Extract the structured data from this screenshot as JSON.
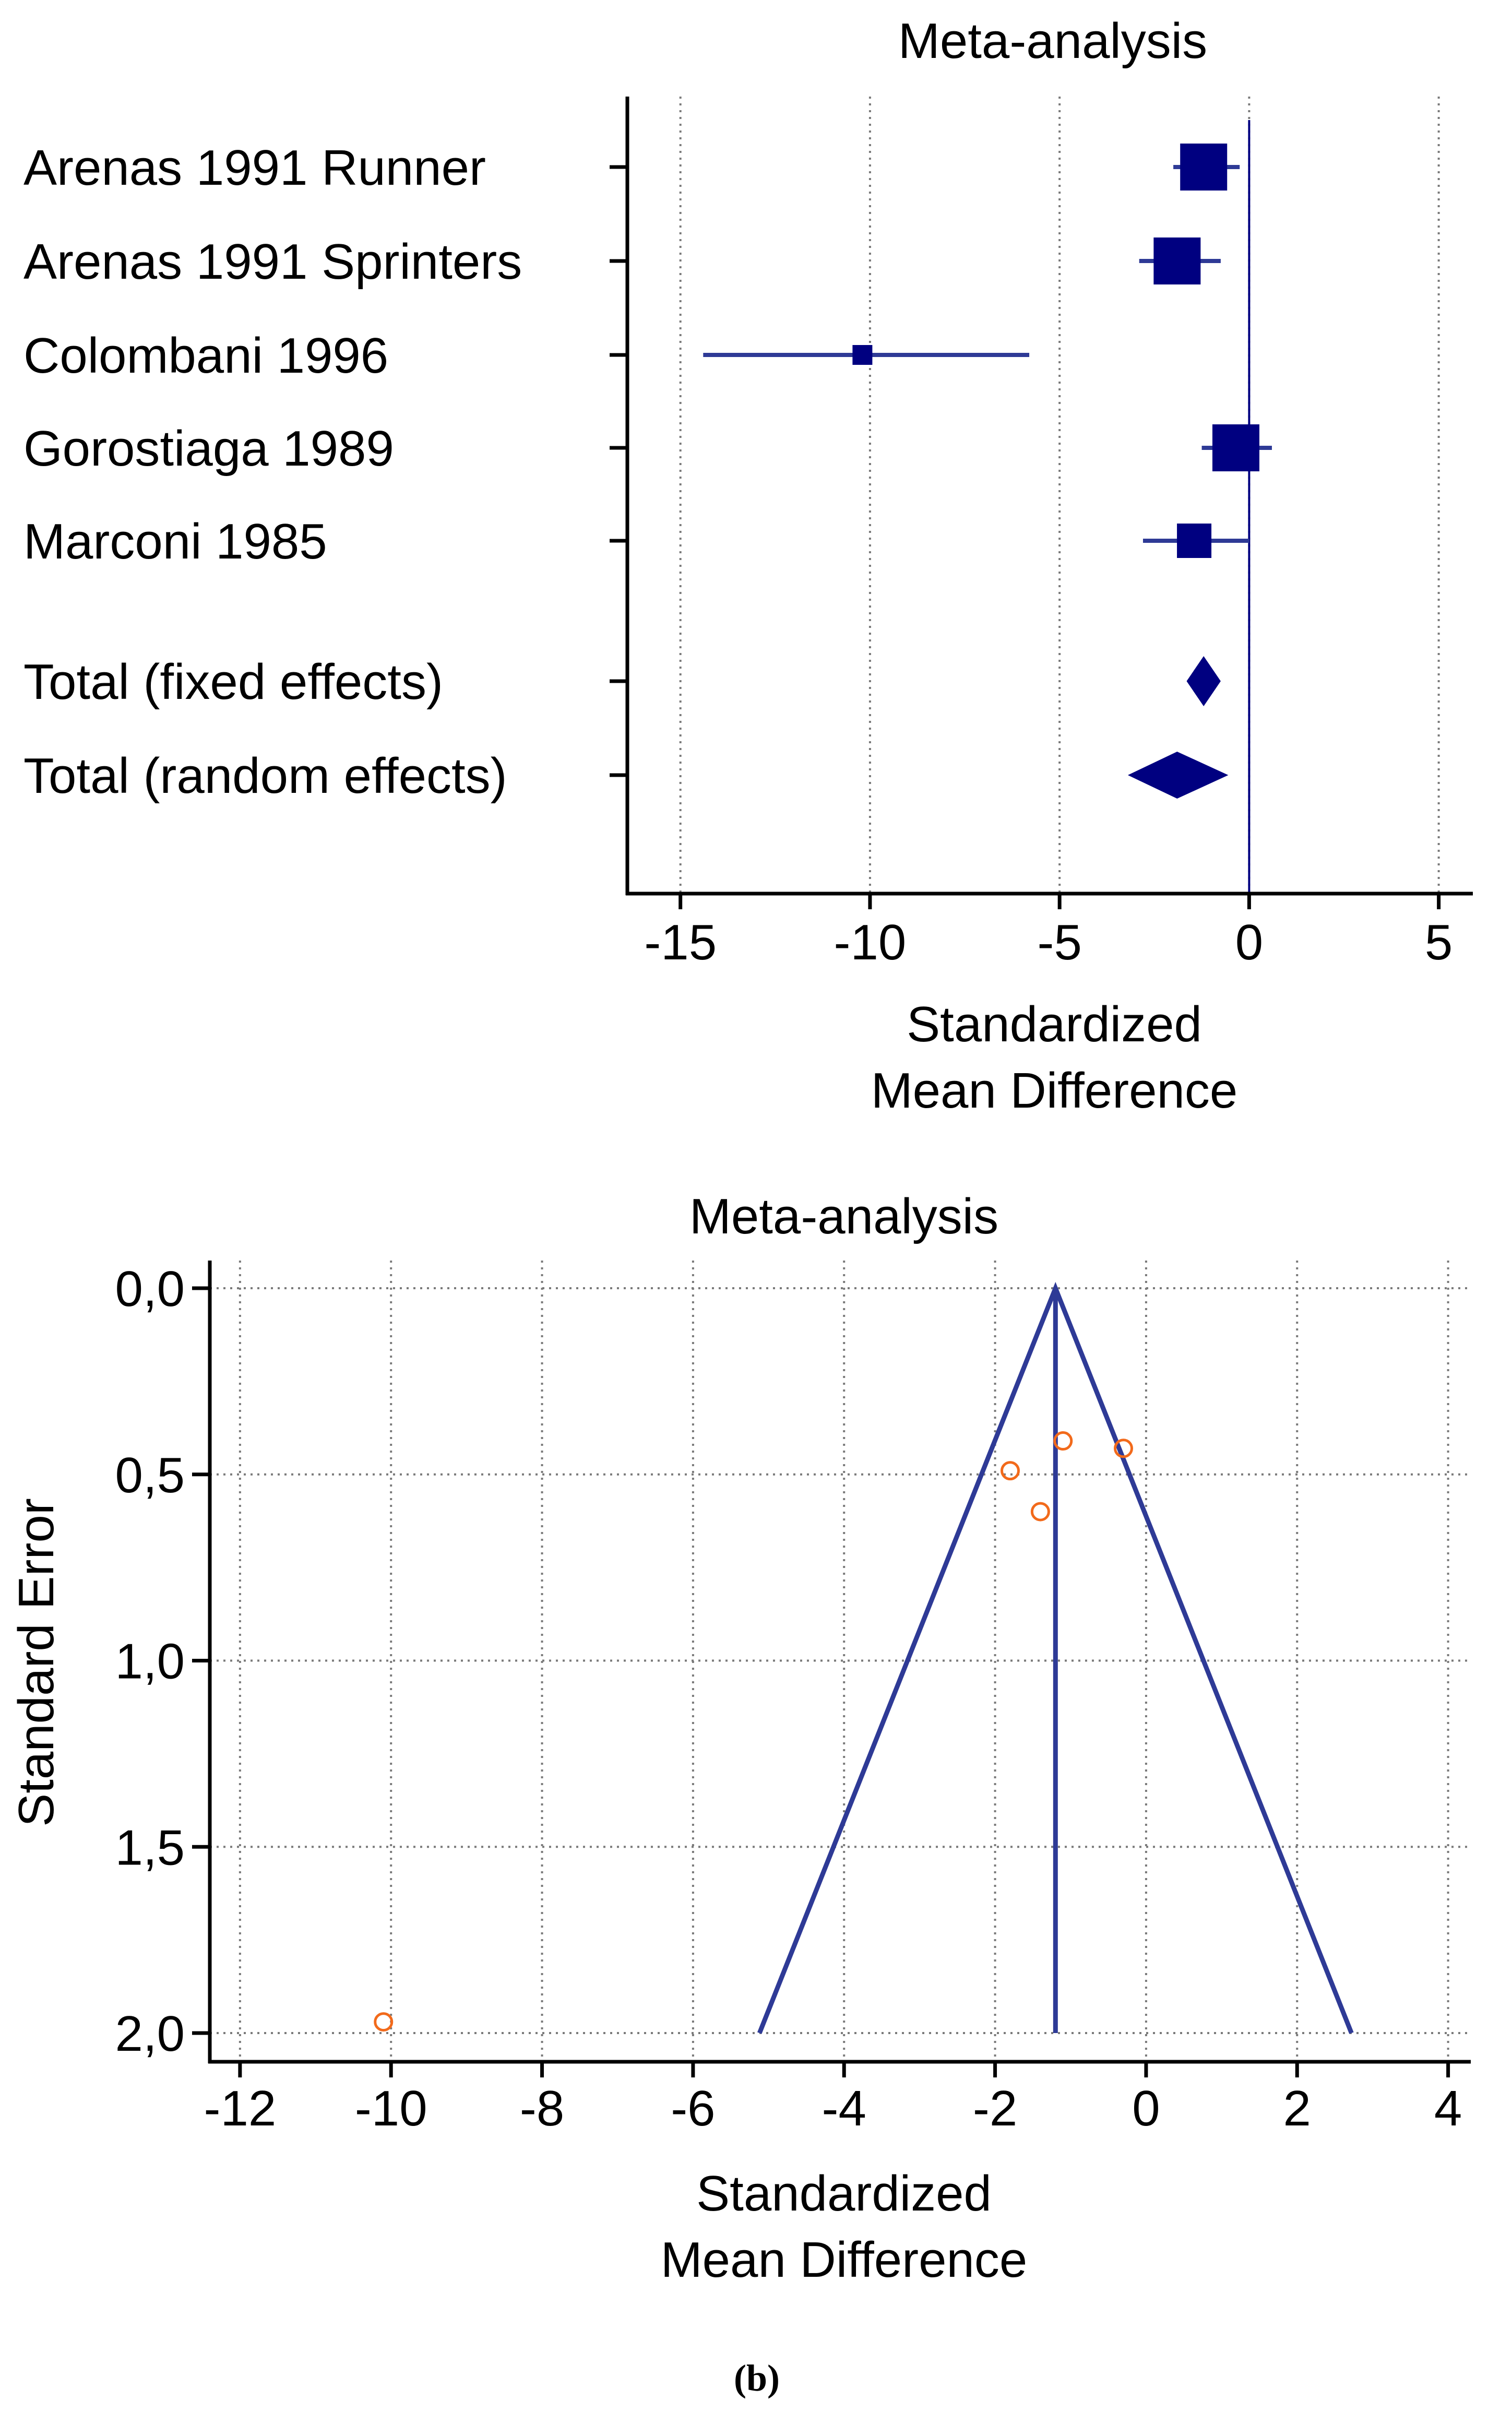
{
  "colors": {
    "ink": "#000000",
    "forest_marker": "#000080",
    "forest_line": "#2e3a96",
    "funnel_line": "#2e3a96",
    "funnel_point": "#f26a1b",
    "grid": "#7a7a7a"
  },
  "chart_data": [
    {
      "type": "forest",
      "title": "Meta-analysis",
      "xlabel_line1": "Standardized",
      "xlabel_line2": "Mean Difference",
      "xlim": [
        -16.4,
        5.9
      ],
      "xticks": [
        -15,
        -10,
        -5,
        0,
        5
      ],
      "xtick_labels": [
        "-15",
        "-10",
        "-5",
        "0",
        "5"
      ],
      "reference_line": 0,
      "studies": [
        {
          "label": "Arenas 1991 Runner",
          "smd": -1.2,
          "ci_low": -2.0,
          "ci_high": -0.25,
          "weight": "large"
        },
        {
          "label": "Arenas 1991 Sprinters",
          "smd": -1.9,
          "ci_low": -2.9,
          "ci_high": -0.75,
          "weight": "large"
        },
        {
          "label": "Colombani 1996",
          "smd": -10.2,
          "ci_low": -14.4,
          "ci_high": -5.8,
          "weight": "small"
        },
        {
          "label": "Gorostiaga 1989",
          "smd": -0.35,
          "ci_low": -1.25,
          "ci_high": 0.6,
          "weight": "large"
        },
        {
          "label": "Marconi 1985",
          "smd": -1.45,
          "ci_low": -2.8,
          "ci_high": 0.0,
          "weight": "medium"
        }
      ],
      "totals": [
        {
          "label": "Total (fixed effects)",
          "smd": -1.2,
          "ci_low": -1.65,
          "ci_high": -0.75
        },
        {
          "label": "Total (random effects)",
          "smd": -1.9,
          "ci_low": -3.2,
          "ci_high": -0.55
        }
      ]
    },
    {
      "type": "funnel",
      "title": "Meta-analysis",
      "xlabel_line1": "Standardized",
      "xlabel_line2": "Mean Difference",
      "ylabel": "Standard Error",
      "xlim": [
        -12.4,
        4.3
      ],
      "ylim": [
        0.0,
        2.07
      ],
      "xticks": [
        -12,
        -10,
        -8,
        -6,
        -4,
        -2,
        0,
        2,
        4
      ],
      "xtick_labels": [
        "-12",
        "-10",
        "-8",
        "-6",
        "-4",
        "-2",
        "0",
        "2",
        "4"
      ],
      "yticks": [
        0.0,
        0.5,
        1.0,
        1.5,
        2.0
      ],
      "ytick_labels": [
        "0,0",
        "0,5",
        "1,0",
        "1,5",
        "2,0"
      ],
      "pooled_effect": -1.2,
      "funnel_base_se": 2.0,
      "points": [
        {
          "x": -1.1,
          "y": 0.41
        },
        {
          "x": -0.3,
          "y": 0.43
        },
        {
          "x": -1.8,
          "y": 0.49
        },
        {
          "x": -1.4,
          "y": 0.6
        },
        {
          "x": -10.1,
          "y": 1.97
        }
      ]
    }
  ],
  "caption": "(b)"
}
